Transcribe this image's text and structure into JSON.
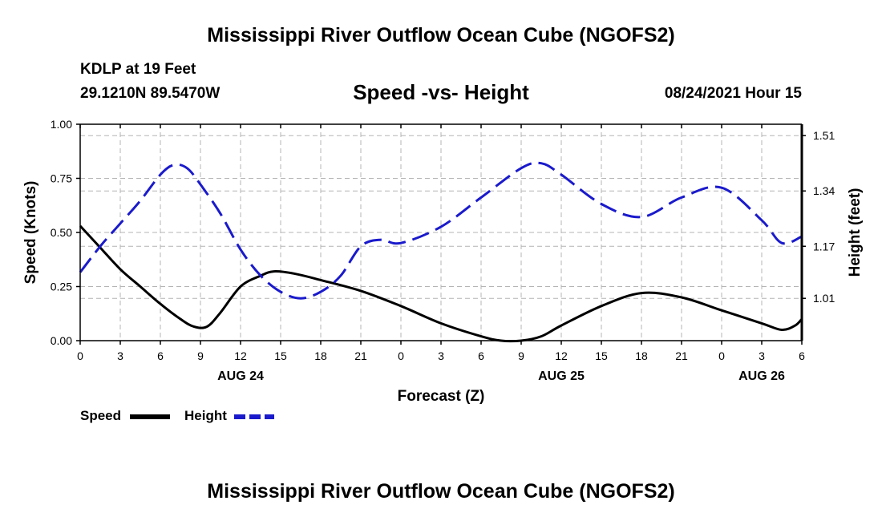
{
  "title": "Mississippi River Outflow Ocean Cube (NGOFS2)",
  "bottom_title": "Mississippi River Outflow Ocean Cube (NGOFS2)",
  "station": "KDLP at 19 Feet",
  "coordinates": "29.1210N  89.5470W",
  "subtitle": "Speed -vs- Height",
  "datetime": "08/24/2021 Hour 15",
  "colors": {
    "speed": "#000000",
    "height": "#1a1acc",
    "grid": "#b4b4b4"
  },
  "chart_data": {
    "type": "line",
    "title": "Speed -vs- Height",
    "xlabel": "Forecast (Z)",
    "ylabel": "Speed (Knots)",
    "y2label": "Height (feet)",
    "x_unit": "forecast hours from AUG 24 00Z",
    "xlim": [
      0,
      54
    ],
    "ylim": [
      0,
      1.0
    ],
    "y2lim": [
      0.88,
      1.545
    ],
    "x_ticks": [
      0,
      3,
      6,
      9,
      12,
      15,
      18,
      21,
      24,
      27,
      30,
      33,
      36,
      39,
      42,
      45,
      48,
      51,
      54
    ],
    "x_tick_labels": [
      "0",
      "3",
      "6",
      "9",
      "12",
      "15",
      "18",
      "21",
      "0",
      "3",
      "6",
      "9",
      "12",
      "15",
      "18",
      "21",
      "0",
      "3",
      "6"
    ],
    "date_labels": [
      {
        "x": 12,
        "label": "AUG 24"
      },
      {
        "x": 36,
        "label": "AUG 25"
      },
      {
        "x": 51,
        "label": "AUG 26"
      }
    ],
    "y_ticks": [
      0,
      0.25,
      0.5,
      0.75,
      1.0
    ],
    "y_tick_labels": [
      "0.00",
      "0.25",
      "0.50",
      "0.75",
      "1.00"
    ],
    "y2_ticks": [
      1.01,
      1.17,
      1.34,
      1.51
    ],
    "y2_tick_labels": [
      "1.01",
      "1.17",
      "1.34",
      "1.51"
    ],
    "grid": true,
    "legend_position": "bottom-left",
    "series": [
      {
        "name": "Speed",
        "axis": "left",
        "style": "solid",
        "x": [
          0,
          1.5,
          3,
          4.5,
          6,
          7.5,
          8.5,
          9.5,
          10.5,
          12,
          13.5,
          14.5,
          16,
          18,
          21,
          24,
          27,
          30,
          31.5,
          33,
          34.5,
          36,
          39,
          42,
          45,
          48,
          51,
          52.5,
          53.5,
          54
        ],
        "y": [
          0.53,
          0.43,
          0.33,
          0.25,
          0.17,
          0.1,
          0.065,
          0.065,
          0.13,
          0.25,
          0.3,
          0.32,
          0.31,
          0.28,
          0.23,
          0.16,
          0.08,
          0.02,
          0,
          0,
          0.02,
          0.07,
          0.16,
          0.22,
          0.2,
          0.14,
          0.08,
          0.05,
          0.07,
          0.1
        ]
      },
      {
        "name": "Height",
        "axis": "right",
        "style": "dashed",
        "x": [
          0,
          1.5,
          3,
          4.5,
          6,
          7,
          8,
          9,
          10.5,
          12,
          13.5,
          15,
          16.5,
          18,
          19.5,
          21,
          22.5,
          24,
          27,
          30,
          33,
          34.5,
          36,
          39,
          42,
          45,
          48,
          51,
          52.5,
          54
        ],
        "y": [
          1.09,
          1.17,
          1.24,
          1.31,
          1.39,
          1.42,
          1.41,
          1.36,
          1.27,
          1.16,
          1.08,
          1.03,
          1.01,
          1.03,
          1.08,
          1.17,
          1.19,
          1.18,
          1.23,
          1.32,
          1.41,
          1.425,
          1.39,
          1.3,
          1.26,
          1.32,
          1.35,
          1.25,
          1.18,
          1.2
        ]
      }
    ]
  }
}
